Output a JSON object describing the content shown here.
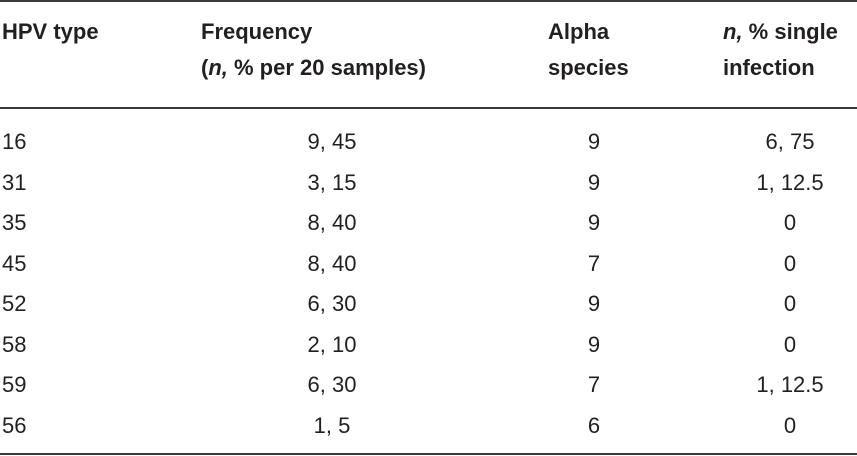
{
  "table": {
    "headers": {
      "hpv_type": "HPV type",
      "frequency_line1": "Frequency",
      "frequency_line2_italic": "n,",
      "frequency_line2_rest": " % per 20 samples)",
      "frequency_line2_open": "(",
      "alpha_line1": "Alpha",
      "alpha_line2": "species",
      "single_line1_italic": "n,",
      "single_line1_rest": " % single",
      "single_line2": "infection"
    },
    "rows": [
      {
        "type": "16",
        "frequency": "9, 45",
        "alpha": "9",
        "single": "6, 75"
      },
      {
        "type": "31",
        "frequency": "3, 15",
        "alpha": "9",
        "single": "1, 12.5"
      },
      {
        "type": "35",
        "frequency": "8, 40",
        "alpha": "9",
        "single": "0"
      },
      {
        "type": "45",
        "frequency": "8, 40",
        "alpha": "7",
        "single": "0"
      },
      {
        "type": "52",
        "frequency": "6, 30",
        "alpha": "9",
        "single": "0"
      },
      {
        "type": "58",
        "frequency": "2, 10",
        "alpha": "9",
        "single": "0"
      },
      {
        "type": "59",
        "frequency": "6, 30",
        "alpha": "7",
        "single": "1, 12.5"
      },
      {
        "type": "56",
        "frequency": "1, 5",
        "alpha": "6",
        "single": "0"
      }
    ]
  }
}
